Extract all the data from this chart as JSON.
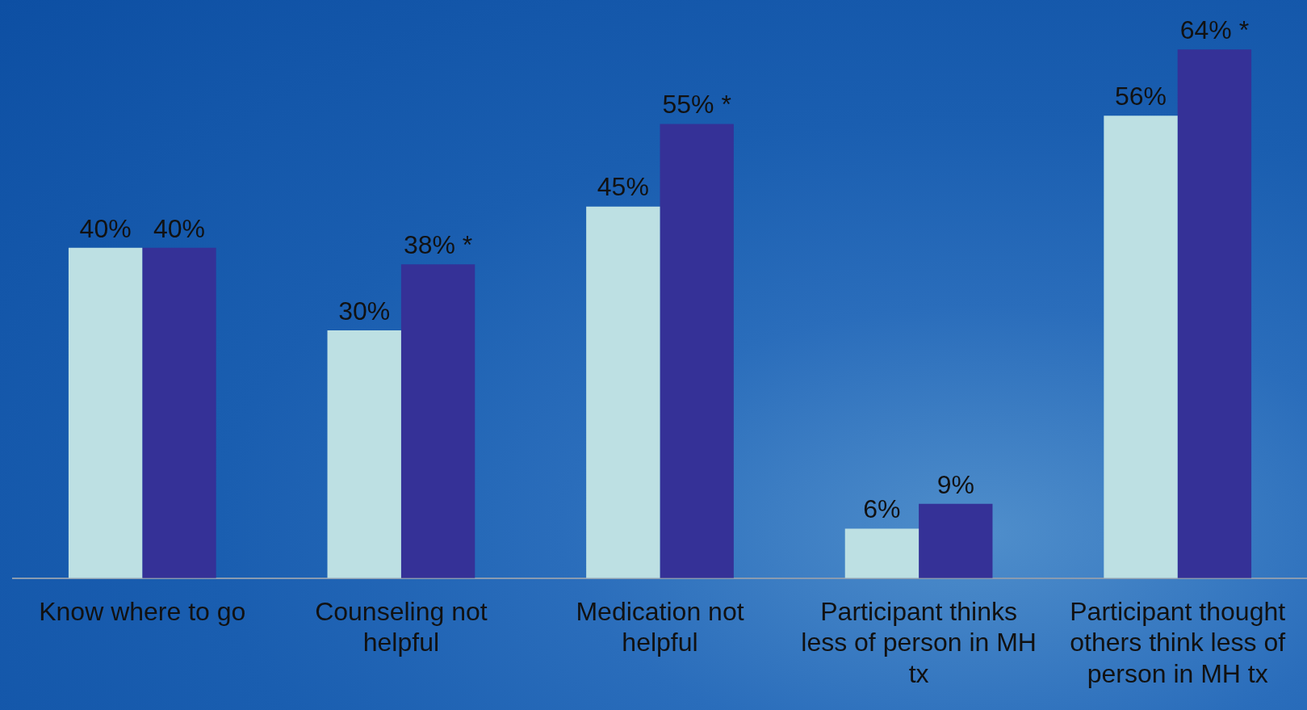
{
  "chart_data": {
    "type": "bar",
    "categories": [
      "Know where to go",
      "Counseling not helpful",
      "Medication not helpful",
      "Participant thinks less of person in MH tx",
      "Participant thought others think less of person in MH tx"
    ],
    "series": [
      {
        "color": "#bde0e3",
        "values": [
          40,
          30,
          45,
          6,
          56
        ],
        "value_labels": [
          "40%",
          "30%",
          "45%",
          "6%",
          "56%"
        ]
      },
      {
        "color": "#353197",
        "values": [
          40,
          38,
          55,
          9,
          64
        ],
        "value_labels": [
          "40%",
          "38% *",
          "55% *",
          "9%",
          "64% *"
        ]
      }
    ],
    "grid": false,
    "legend": false,
    "tick_labels": "x"
  }
}
